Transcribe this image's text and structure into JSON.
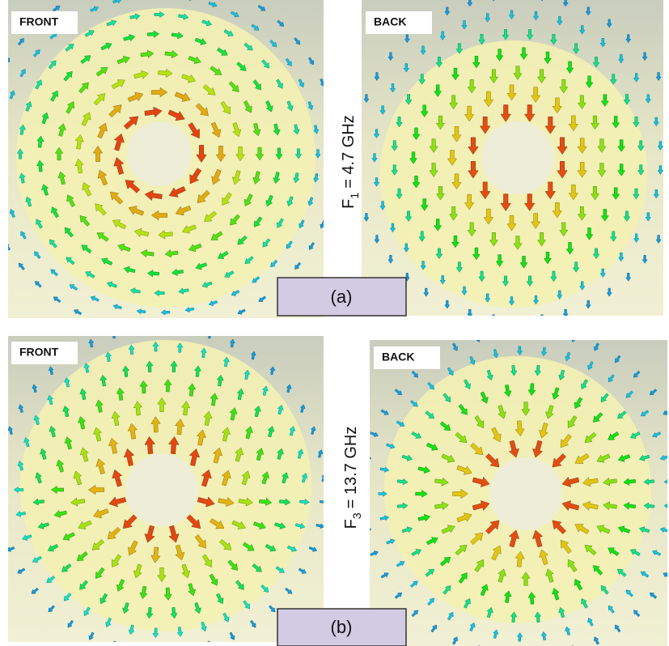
{
  "panels": [
    {
      "label": "FRONT"
    },
    {
      "label": "BACK"
    },
    {
      "label": "FRONT"
    },
    {
      "label": "BACK"
    }
  ],
  "rows": [
    {
      "frequency": {
        "symbol": "F",
        "subscript": "1",
        "text": "= 4.7 GHz"
      },
      "caption": "(a)"
    },
    {
      "frequency": {
        "symbol": "F",
        "subscript": "3",
        "text": "= 13.7 GHz"
      },
      "caption": "(b)"
    }
  ]
}
